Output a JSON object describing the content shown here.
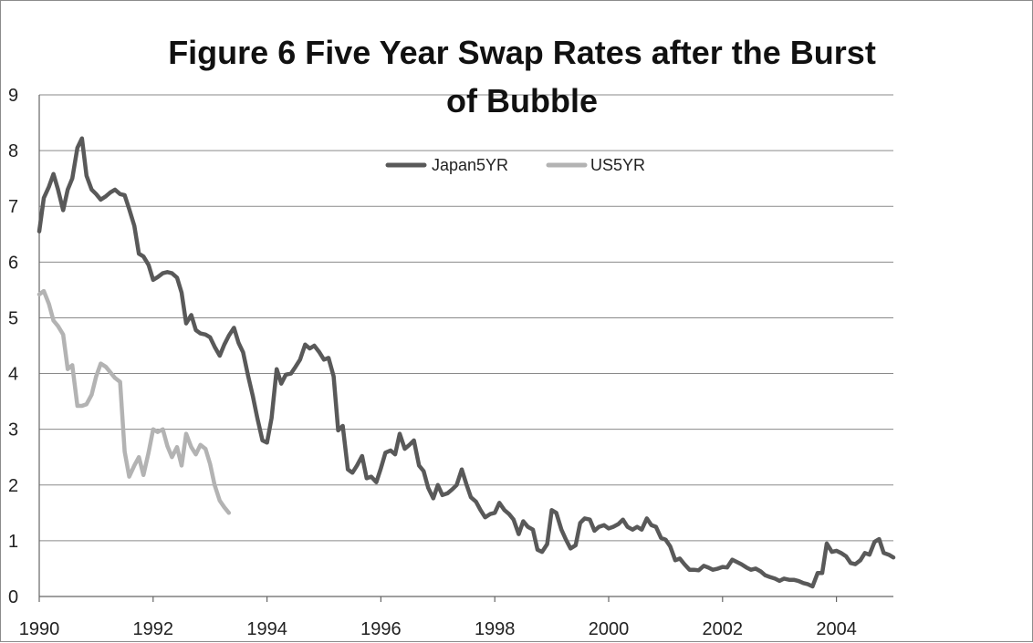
{
  "chart_data": {
    "type": "line",
    "title": "Figure 6 Five Year Swap Rates  after the Burst of Bubble",
    "xlabel": "",
    "ylabel": "",
    "xlim": [
      1990,
      2005
    ],
    "ylim": [
      0,
      9
    ],
    "y_ticks": [
      "0",
      "1",
      "2",
      "3",
      "4",
      "5",
      "6",
      "7",
      "8",
      "9"
    ],
    "x_ticks": [
      "1990",
      "1992",
      "1994",
      "1996",
      "1998",
      "2000",
      "2002",
      "2004"
    ],
    "grid": "horizontal",
    "legend_position": "top-center",
    "series": [
      {
        "name": "Japan5YR",
        "color": "#595959",
        "points": [
          [
            1990.0,
            6.55
          ],
          [
            1990.08,
            7.15
          ],
          [
            1990.17,
            7.35
          ],
          [
            1990.25,
            7.58
          ],
          [
            1990.33,
            7.3
          ],
          [
            1990.42,
            6.93
          ],
          [
            1990.5,
            7.3
          ],
          [
            1990.58,
            7.5
          ],
          [
            1990.67,
            8.05
          ],
          [
            1990.75,
            8.22
          ],
          [
            1990.83,
            7.55
          ],
          [
            1990.92,
            7.3
          ],
          [
            1991.0,
            7.22
          ],
          [
            1991.08,
            7.12
          ],
          [
            1991.17,
            7.18
          ],
          [
            1991.25,
            7.25
          ],
          [
            1991.33,
            7.3
          ],
          [
            1991.42,
            7.22
          ],
          [
            1991.5,
            7.2
          ],
          [
            1991.58,
            6.95
          ],
          [
            1991.67,
            6.65
          ],
          [
            1991.75,
            6.15
          ],
          [
            1991.83,
            6.1
          ],
          [
            1991.92,
            5.95
          ],
          [
            1992.0,
            5.68
          ],
          [
            1992.08,
            5.73
          ],
          [
            1992.17,
            5.8
          ],
          [
            1992.25,
            5.82
          ],
          [
            1992.33,
            5.8
          ],
          [
            1992.42,
            5.72
          ],
          [
            1992.5,
            5.45
          ],
          [
            1992.58,
            4.9
          ],
          [
            1992.67,
            5.05
          ],
          [
            1992.75,
            4.78
          ],
          [
            1992.83,
            4.72
          ],
          [
            1992.92,
            4.7
          ],
          [
            1993.0,
            4.65
          ],
          [
            1993.08,
            4.48
          ],
          [
            1993.17,
            4.32
          ],
          [
            1993.25,
            4.52
          ],
          [
            1993.33,
            4.68
          ],
          [
            1993.42,
            4.82
          ],
          [
            1993.5,
            4.55
          ],
          [
            1993.58,
            4.38
          ],
          [
            1993.67,
            3.95
          ],
          [
            1993.75,
            3.6
          ],
          [
            1993.83,
            3.2
          ],
          [
            1993.92,
            2.8
          ],
          [
            1994.0,
            2.76
          ],
          [
            1994.08,
            3.2
          ],
          [
            1994.17,
            4.08
          ],
          [
            1994.25,
            3.82
          ],
          [
            1994.33,
            3.98
          ],
          [
            1994.42,
            4.0
          ],
          [
            1994.5,
            4.12
          ],
          [
            1994.58,
            4.25
          ],
          [
            1994.67,
            4.52
          ],
          [
            1994.75,
            4.45
          ],
          [
            1994.83,
            4.5
          ],
          [
            1994.92,
            4.38
          ],
          [
            1995.0,
            4.25
          ],
          [
            1995.08,
            4.28
          ],
          [
            1995.17,
            3.95
          ],
          [
            1995.25,
            2.98
          ],
          [
            1995.33,
            3.06
          ],
          [
            1995.42,
            2.28
          ],
          [
            1995.5,
            2.22
          ],
          [
            1995.58,
            2.35
          ],
          [
            1995.67,
            2.52
          ],
          [
            1995.75,
            2.12
          ],
          [
            1995.83,
            2.15
          ],
          [
            1995.92,
            2.05
          ],
          [
            1996.0,
            2.3
          ],
          [
            1996.08,
            2.58
          ],
          [
            1996.17,
            2.62
          ],
          [
            1996.25,
            2.55
          ],
          [
            1996.33,
            2.92
          ],
          [
            1996.42,
            2.65
          ],
          [
            1996.5,
            2.72
          ],
          [
            1996.58,
            2.8
          ],
          [
            1996.67,
            2.35
          ],
          [
            1996.75,
            2.25
          ],
          [
            1996.83,
            1.95
          ],
          [
            1996.92,
            1.76
          ],
          [
            1997.0,
            2.0
          ],
          [
            1997.08,
            1.82
          ],
          [
            1997.17,
            1.85
          ],
          [
            1997.25,
            1.92
          ],
          [
            1997.33,
            2.0
          ],
          [
            1997.42,
            2.28
          ],
          [
            1997.5,
            2.02
          ],
          [
            1997.58,
            1.78
          ],
          [
            1997.67,
            1.7
          ],
          [
            1997.75,
            1.55
          ],
          [
            1997.83,
            1.42
          ],
          [
            1997.92,
            1.48
          ],
          [
            1998.0,
            1.5
          ],
          [
            1998.08,
            1.68
          ],
          [
            1998.17,
            1.55
          ],
          [
            1998.25,
            1.48
          ],
          [
            1998.33,
            1.38
          ],
          [
            1998.42,
            1.12
          ],
          [
            1998.5,
            1.35
          ],
          [
            1998.58,
            1.25
          ],
          [
            1998.67,
            1.2
          ],
          [
            1998.75,
            0.84
          ],
          [
            1998.83,
            0.8
          ],
          [
            1998.92,
            0.94
          ],
          [
            1999.0,
            1.55
          ],
          [
            1999.08,
            1.5
          ],
          [
            1999.17,
            1.2
          ],
          [
            1999.25,
            1.02
          ],
          [
            1999.33,
            0.86
          ],
          [
            1999.42,
            0.92
          ],
          [
            1999.5,
            1.32
          ],
          [
            1999.58,
            1.4
          ],
          [
            1999.67,
            1.38
          ],
          [
            1999.75,
            1.18
          ],
          [
            1999.83,
            1.25
          ],
          [
            1999.92,
            1.28
          ],
          [
            2000.0,
            1.22
          ],
          [
            2000.08,
            1.25
          ],
          [
            2000.17,
            1.3
          ],
          [
            2000.25,
            1.38
          ],
          [
            2000.33,
            1.25
          ],
          [
            2000.42,
            1.2
          ],
          [
            2000.5,
            1.25
          ],
          [
            2000.58,
            1.2
          ],
          [
            2000.67,
            1.4
          ],
          [
            2000.75,
            1.28
          ],
          [
            2000.83,
            1.25
          ],
          [
            2000.92,
            1.05
          ],
          [
            2001.0,
            1.02
          ],
          [
            2001.08,
            0.9
          ],
          [
            2001.17,
            0.65
          ],
          [
            2001.25,
            0.68
          ],
          [
            2001.33,
            0.58
          ],
          [
            2001.42,
            0.48
          ],
          [
            2001.5,
            0.48
          ],
          [
            2001.58,
            0.47
          ],
          [
            2001.67,
            0.55
          ],
          [
            2001.75,
            0.52
          ],
          [
            2001.83,
            0.48
          ],
          [
            2001.92,
            0.5
          ],
          [
            2002.0,
            0.53
          ],
          [
            2002.08,
            0.52
          ],
          [
            2002.17,
            0.66
          ],
          [
            2002.25,
            0.62
          ],
          [
            2002.33,
            0.58
          ],
          [
            2002.42,
            0.52
          ],
          [
            2002.5,
            0.48
          ],
          [
            2002.58,
            0.5
          ],
          [
            2002.67,
            0.45
          ],
          [
            2002.75,
            0.38
          ],
          [
            2002.83,
            0.35
          ],
          [
            2002.92,
            0.32
          ],
          [
            2003.0,
            0.28
          ],
          [
            2003.08,
            0.32
          ],
          [
            2003.17,
            0.3
          ],
          [
            2003.25,
            0.3
          ],
          [
            2003.33,
            0.28
          ],
          [
            2003.42,
            0.24
          ],
          [
            2003.5,
            0.22
          ],
          [
            2003.58,
            0.18
          ],
          [
            2003.67,
            0.42
          ],
          [
            2003.75,
            0.42
          ],
          [
            2003.83,
            0.95
          ],
          [
            2003.92,
            0.8
          ],
          [
            2004.0,
            0.82
          ],
          [
            2004.08,
            0.78
          ],
          [
            2004.17,
            0.72
          ],
          [
            2004.25,
            0.6
          ],
          [
            2004.33,
            0.58
          ],
          [
            2004.42,
            0.65
          ],
          [
            2004.5,
            0.78
          ],
          [
            2004.58,
            0.75
          ],
          [
            2004.67,
            0.98
          ],
          [
            2004.75,
            1.03
          ],
          [
            2004.83,
            0.78
          ],
          [
            2004.92,
            0.75
          ],
          [
            2005.0,
            0.7
          ]
        ]
      },
      {
        "name": "US5YR",
        "color": "#b3b3b3",
        "points": [
          [
            1990.0,
            5.42
          ],
          [
            1990.08,
            5.48
          ],
          [
            1990.17,
            5.25
          ],
          [
            1990.25,
            4.95
          ],
          [
            1990.33,
            4.85
          ],
          [
            1990.42,
            4.7
          ],
          [
            1990.5,
            4.08
          ],
          [
            1990.58,
            4.15
          ],
          [
            1990.67,
            3.42
          ],
          [
            1990.75,
            3.42
          ],
          [
            1990.83,
            3.45
          ],
          [
            1990.92,
            3.62
          ],
          [
            1991.0,
            3.95
          ],
          [
            1991.08,
            4.18
          ],
          [
            1991.17,
            4.12
          ],
          [
            1991.25,
            4.02
          ],
          [
            1991.33,
            3.92
          ],
          [
            1991.42,
            3.85
          ],
          [
            1991.5,
            2.6
          ],
          [
            1991.58,
            2.15
          ],
          [
            1991.67,
            2.35
          ],
          [
            1991.75,
            2.5
          ],
          [
            1991.83,
            2.18
          ],
          [
            1991.92,
            2.58
          ],
          [
            1992.0,
            3.0
          ],
          [
            1992.08,
            2.95
          ],
          [
            1992.17,
            3.0
          ],
          [
            1992.25,
            2.7
          ],
          [
            1992.33,
            2.5
          ],
          [
            1992.42,
            2.68
          ],
          [
            1992.5,
            2.35
          ],
          [
            1992.58,
            2.92
          ],
          [
            1992.67,
            2.68
          ],
          [
            1992.75,
            2.55
          ],
          [
            1992.83,
            2.72
          ],
          [
            1992.92,
            2.65
          ],
          [
            1993.0,
            2.38
          ],
          [
            1993.08,
            2.0
          ],
          [
            1993.17,
            1.72
          ],
          [
            1993.25,
            1.6
          ],
          [
            1993.33,
            1.5
          ]
        ]
      }
    ]
  }
}
